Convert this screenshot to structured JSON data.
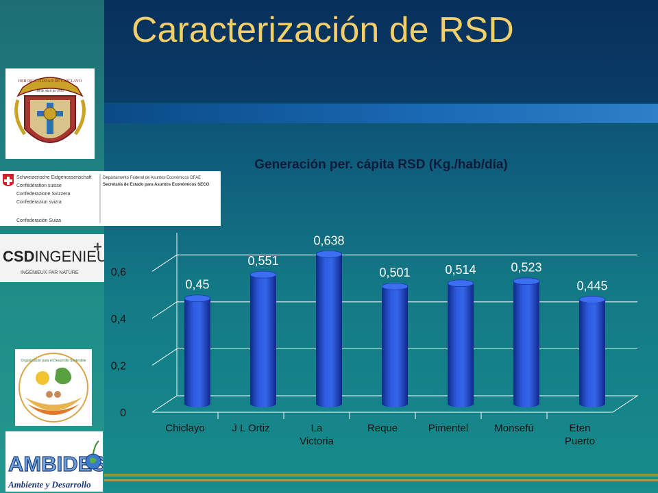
{
  "slide": {
    "title": "Caracterización de RSD"
  },
  "logos": {
    "chiclayo": {
      "arc_text": "HEROICA CIUDAD DE CHICLAYO",
      "date_text": "18 de Abril de 1835"
    },
    "swiss": {
      "left_lines": [
        "Schweizerische Eidgenossenschaft",
        "Confédération suisse",
        "Confederazione Svizzera",
        "Confederaziun svizra",
        "Confederación Suiza"
      ],
      "right_lines": [
        "Departamento Federal de Asuntos Económicos DFAE",
        "Secretaría de Estado para Asuntos Económicos SECO"
      ]
    },
    "csd": {
      "name_bold": "CSD",
      "name_rest": "INGENIEURS",
      "tagline": "INGÉNIEUX PAR NATURE"
    },
    "org": {
      "arc_text": "Organización para el Desarrollo Sostenible"
    },
    "ambides": {
      "name": "AMBIDES",
      "tagline": "Ambiente y Desarrollo"
    }
  },
  "chart_data": {
    "type": "bar",
    "title": "Generación per. cápita RSD (Kg./hab/día)",
    "categories": [
      "Chiclayo",
      "J L Ortiz",
      "La Victoria",
      "Reque",
      "Pimentel",
      "Monsefú",
      "Eten Puerto"
    ],
    "category_lines": [
      [
        "Chiclayo"
      ],
      [
        "J L Ortiz"
      ],
      [
        "La",
        "Victoria"
      ],
      [
        "Reque"
      ],
      [
        "Pimentel"
      ],
      [
        "Monsefú"
      ],
      [
        "Eten",
        "Puerto"
      ]
    ],
    "values": [
      0.45,
      0.551,
      0.638,
      0.501,
      0.514,
      0.523,
      0.445
    ],
    "value_labels": [
      "0,45",
      "0,551",
      "0,638",
      "0,501",
      "0,514",
      "0,523",
      "0,445"
    ],
    "yticks": [
      0,
      0.2,
      0.4,
      0.6
    ],
    "ytick_labels": [
      "0",
      "0,2",
      "0,4",
      "0,6"
    ],
    "ylim": [
      0,
      0.7
    ],
    "grid": true,
    "bar_color": "#2448c8"
  }
}
